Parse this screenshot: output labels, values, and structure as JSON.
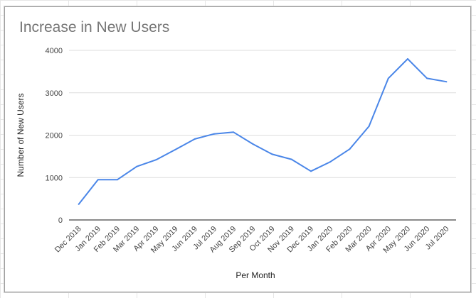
{
  "chart_data": {
    "type": "line",
    "title": "Increase in New Users",
    "xlabel": "Per Month",
    "ylabel": "Number of New Users",
    "categories": [
      "Dec 2018",
      "Jan 2019",
      "Feb 2019",
      "Mar 2019",
      "Apr 2019",
      "May 2019",
      "Jun 2019",
      "Jul 2019",
      "Aug 2019",
      "Sep 2019",
      "Oct 2019",
      "Nov 2019",
      "Dec 2019",
      "Jan 2020",
      "Feb 2020",
      "Mar 2020",
      "Apr 2020",
      "May 2020",
      "Jun 2020",
      "Jul 2020"
    ],
    "series": [
      {
        "values": [
          370,
          950,
          950,
          1260,
          1420,
          1660,
          1910,
          2030,
          2070,
          1790,
          1550,
          1430,
          1150,
          1370,
          1670,
          2210,
          3340,
          3800,
          3340,
          3260
        ],
        "color": "#4a86e8"
      }
    ],
    "ylim": [
      0,
      4000
    ],
    "yticks": [
      0,
      1000,
      2000,
      3000,
      4000
    ],
    "grid": true,
    "legend": "none"
  }
}
